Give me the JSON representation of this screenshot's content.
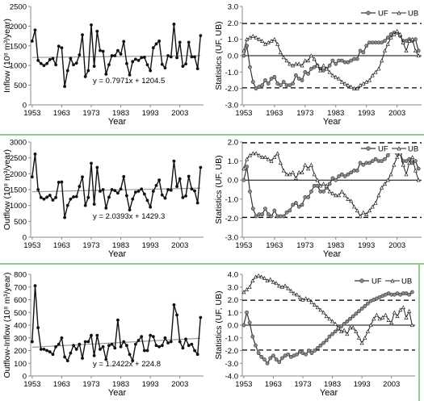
{
  "chart_data": [
    {
      "id": "p1",
      "type": "line",
      "ylabel": "Inflow (10⁸ m³/year)",
      "xlabel": "Year",
      "xlim": [
        1952.5,
        2011
      ],
      "ylim": [
        0,
        2500
      ],
      "yticks": [
        0,
        500,
        1000,
        1500,
        2000,
        2500
      ],
      "xticks": [
        1953,
        1963,
        1973,
        1983,
        1993,
        2003
      ],
      "annotation": "y = 0.7971x + 1204.5",
      "trend": {
        "slope": 0.7971,
        "intercept": 1204.5
      },
      "series": [
        {
          "name": "",
          "x_start": 1953,
          "values": [
            1620,
            1900,
            1130,
            1050,
            1000,
            1050,
            1150,
            1180,
            1020,
            1490,
            1450,
            470,
            870,
            1180,
            1020,
            1060,
            1270,
            1780,
            720,
            870,
            2030,
            980,
            1870,
            1380,
            1360,
            780,
            1020,
            1250,
            1250,
            1380,
            1290,
            1610,
            1050,
            760,
            1100,
            1160,
            1130,
            1200,
            1210,
            1020,
            870,
            1450,
            1550,
            1620,
            1030,
            940,
            1250,
            1220,
            2050,
            1200,
            1590,
            980,
            1040,
            1590,
            1220,
            1220,
            920,
            1760
          ]
        }
      ]
    },
    {
      "id": "p2",
      "type": "line",
      "ylabel": "Statistics (UF, UB)",
      "xlabel": "Year",
      "xlim": [
        1952.5,
        2011
      ],
      "ylim": [
        -3,
        3
      ],
      "yticks": [
        -3,
        -2,
        -1,
        0,
        1,
        2,
        3
      ],
      "xticks": [
        1953,
        1963,
        1973,
        1983,
        1993,
        2003
      ],
      "hlines": [
        1.96,
        -1.96
      ],
      "series": [
        {
          "name": "UF",
          "x_start": 1953,
          "values": [
            0,
            0.6,
            -0.7,
            -1.6,
            -2.0,
            -1.9,
            -1.8,
            -1.5,
            -1.7,
            -1.4,
            -1.3,
            -1.7,
            -1.8,
            -1.6,
            -1.8,
            -1.8,
            -1.7,
            -1.2,
            -1.4,
            -1.5,
            -1.0,
            -1.1,
            -0.8,
            -0.7,
            -0.6,
            -0.8,
            -0.9,
            -0.8,
            -0.6,
            -0.3,
            -0.5,
            -0.3,
            -0.3,
            -0.4,
            -0.4,
            -0.3,
            -0.2,
            -0.2,
            0.3,
            0.2,
            0.6,
            0.8,
            0.8,
            0.8,
            0.8,
            0.8,
            0.9,
            1.1,
            1.3,
            1.4,
            1.4,
            1.2,
            0.9,
            0.9,
            1.0,
            0.9,
            1.0,
            0.3
          ]
        },
        {
          "name": "UB",
          "x_start": 1953,
          "values": [
            0.3,
            1.0,
            1.1,
            1.2,
            1.1,
            1.0,
            0.9,
            0.7,
            0.8,
            0.9,
            1.0,
            0.7,
            0.2,
            -0.1,
            -0.3,
            -0.5,
            -0.6,
            -0.5,
            -0.5,
            -0.6,
            -0.3,
            -0.3,
            0.0,
            -0.2,
            -0.6,
            -0.9,
            -0.6,
            -0.8,
            -1.0,
            -1.2,
            -1.3,
            -1.4,
            -1.6,
            -1.7,
            -1.8,
            -1.9,
            -2.0,
            -2.0,
            -1.8,
            -1.7,
            -1.6,
            -1.5,
            -1.2,
            -1.0,
            -0.8,
            -0.3,
            0.3,
            0.7,
            1.1,
            1.3,
            1.5,
            1.3,
            0.8,
            0.3,
            0.9,
            1.0,
            0.3,
            0.0
          ]
        }
      ],
      "legend": [
        "UF",
        "UB"
      ]
    },
    {
      "id": "p3",
      "type": "line",
      "ylabel": "Outflow (10⁸ m³/year)",
      "xlabel": "Year",
      "xlim": [
        1952.5,
        2011
      ],
      "ylim": [
        0,
        3000
      ],
      "yticks": [
        0,
        500,
        1000,
        1500,
        2000,
        2500,
        3000
      ],
      "xticks": [
        1953,
        1963,
        1973,
        1983,
        1993,
        2003
      ],
      "annotation": "y = 2.0393x + 1429.3",
      "trend": {
        "slope": 2.0393,
        "intercept": 1429.3
      },
      "series": [
        {
          "name": "",
          "x_start": 1953,
          "values": [
            1900,
            2620,
            1500,
            1250,
            1200,
            1260,
            1320,
            1170,
            1250,
            1730,
            1740,
            620,
            1000,
            1200,
            1270,
            1280,
            1600,
            1900,
            1000,
            1250,
            2330,
            1040,
            2200,
            1450,
            1500,
            920,
            1260,
            1500,
            1470,
            1390,
            1520,
            1910,
            1310,
            860,
            1200,
            1420,
            1450,
            1520,
            1360,
            1160,
            950,
            1450,
            1630,
            1800,
            1330,
            1230,
            1500,
            1480,
            2400,
            1600,
            1840,
            1250,
            1300,
            1920,
            1520,
            1460,
            1080,
            2200
          ]
        }
      ]
    },
    {
      "id": "p4",
      "type": "line",
      "ylabel": "Statistics (UF, UB)",
      "xlabel": "Year",
      "xlim": [
        1952.5,
        2011
      ],
      "ylim": [
        -3,
        2
      ],
      "yticks": [
        -3,
        -2,
        -1,
        0,
        1,
        2
      ],
      "xticks": [
        1953,
        1963,
        1973,
        1983,
        1993,
        2003
      ],
      "hlines": [
        1.96,
        -1.96
      ],
      "series": [
        {
          "name": "UF",
          "x_start": 1953,
          "values": [
            0,
            0.7,
            -0.6,
            -1.5,
            -1.9,
            -1.8,
            -1.8,
            -1.5,
            -1.8,
            -1.9,
            -1.6,
            -1.9,
            -1.9,
            -1.9,
            -1.7,
            -1.6,
            -1.3,
            -1.2,
            -1.4,
            -1.3,
            -0.9,
            -0.9,
            -0.6,
            -0.3,
            -0.3,
            -0.6,
            -0.6,
            -0.4,
            -0.2,
            0.1,
            0.0,
            0.2,
            0.3,
            0.2,
            0.3,
            0.4,
            0.5,
            0.5,
            0.9,
            0.8,
            0.9,
            0.9,
            1.0,
            1.1,
            1.0,
            1.0,
            1.1,
            1.3,
            1.5,
            1.5,
            1.4,
            1.4,
            1.0,
            1.0,
            1.1,
            0.9,
            1.0,
            0.6
          ]
        },
        {
          "name": "UB",
          "x_start": 1953,
          "values": [
            0.6,
            1.1,
            1.3,
            1.4,
            1.4,
            1.3,
            1.2,
            1.2,
            1.1,
            1.0,
            1.2,
            1.4,
            0.9,
            0.5,
            0.3,
            0.3,
            0.4,
            0.1,
            0.4,
            0.4,
            0.8,
            0.6,
            0.8,
            0.3,
            0.0,
            -0.3,
            -0.2,
            -0.3,
            -0.6,
            -0.7,
            -0.8,
            -0.8,
            -0.6,
            -0.8,
            -1.0,
            -1.1,
            -1.4,
            -1.6,
            -1.9,
            -1.7,
            -1.8,
            -1.6,
            -1.4,
            -1.2,
            -0.8,
            -0.4,
            -0.2,
            0.0,
            0.3,
            0.8,
            1.2,
            1.4,
            0.8,
            0.3,
            0.9,
            1.2,
            0.5,
            0.0
          ]
        }
      ],
      "legend": [
        "UF",
        "UB"
      ]
    },
    {
      "id": "p5",
      "type": "line",
      "ylabel": "Outflow-Inflow (10⁸ m³/year)",
      "xlabel": "Year",
      "xlim": [
        1952.5,
        2011
      ],
      "ylim": [
        0,
        800
      ],
      "yticks": [
        0,
        100,
        200,
        300,
        400,
        500,
        600,
        700,
        800
      ],
      "xticks": [
        1953,
        1963,
        1973,
        1983,
        1993,
        2003
      ],
      "annotation": "y = 1.2422x + 224.8",
      "trend": {
        "slope": 1.2422,
        "intercept": 224.8
      },
      "series": [
        {
          "name": "",
          "x_start": 1953,
          "values": [
            270,
            710,
            380,
            210,
            210,
            200,
            190,
            170,
            230,
            250,
            300,
            150,
            120,
            180,
            240,
            210,
            250,
            140,
            270,
            270,
            320,
            160,
            320,
            210,
            230,
            130,
            240,
            250,
            220,
            440,
            230,
            270,
            240,
            170,
            120,
            250,
            280,
            310,
            200,
            200,
            320,
            310,
            240,
            230,
            240,
            300,
            260,
            270,
            560,
            480,
            270,
            220,
            290,
            240,
            250,
            200,
            170,
            460
          ]
        }
      ]
    },
    {
      "id": "p6",
      "type": "line",
      "ylabel": "Statistics (UF, UB)",
      "xlabel": "Year",
      "xlim": [
        1952.5,
        2011
      ],
      "ylim": [
        -4,
        4
      ],
      "yticks": [
        -4,
        -3,
        -2,
        -1,
        0,
        1,
        2,
        3,
        4
      ],
      "xticks": [
        1953,
        1963,
        1973,
        1983,
        1993,
        2003
      ],
      "hlines": [
        1.96,
        -1.96
      ],
      "series": [
        {
          "name": "UF",
          "x_start": 1953,
          "values": [
            0,
            1.0,
            0.2,
            -0.9,
            -1.6,
            -2.2,
            -2.5,
            -2.7,
            -3.0,
            -2.6,
            -2.4,
            -2.7,
            -2.9,
            -2.6,
            -2.4,
            -2.3,
            -2.5,
            -2.4,
            -2.3,
            -2.1,
            -2.2,
            -2.3,
            -2.0,
            -2.2,
            -2.0,
            -1.8,
            -1.6,
            -1.4,
            -1.2,
            -0.9,
            -0.7,
            -0.5,
            -0.3,
            -0.1,
            0.1,
            0.3,
            0.5,
            0.7,
            0.9,
            1.1,
            1.3,
            1.5,
            1.7,
            1.9,
            2.0,
            2.1,
            2.2,
            2.3,
            2.4,
            2.5,
            2.4,
            2.4,
            2.5,
            2.4,
            2.5,
            2.5,
            2.4,
            2.6
          ]
        },
        {
          "name": "UB",
          "x_start": 1953,
          "values": [
            2.6,
            2.8,
            3.0,
            3.5,
            3.8,
            3.9,
            3.8,
            3.7,
            3.5,
            3.6,
            3.4,
            3.3,
            3.1,
            3.0,
            3.1,
            2.9,
            2.7,
            2.5,
            2.4,
            2.2,
            2.0,
            2.1,
            2.0,
            1.8,
            1.6,
            1.4,
            1.2,
            1.0,
            0.7,
            0.5,
            0.3,
            0.1,
            -0.2,
            -0.5,
            -0.4,
            -0.7,
            -0.2,
            -0.2,
            -0.5,
            -1.0,
            -1.4,
            -1.0,
            -0.5,
            0.0,
            0.5,
            0.8,
            0.5,
            0.6,
            0.8,
            0.4,
            0.2,
            1.0,
            0.7,
            1.2,
            1.4,
            0.6,
            1.1,
            0.0
          ]
        }
      ],
      "legend": [
        "UF",
        "UB"
      ]
    }
  ]
}
